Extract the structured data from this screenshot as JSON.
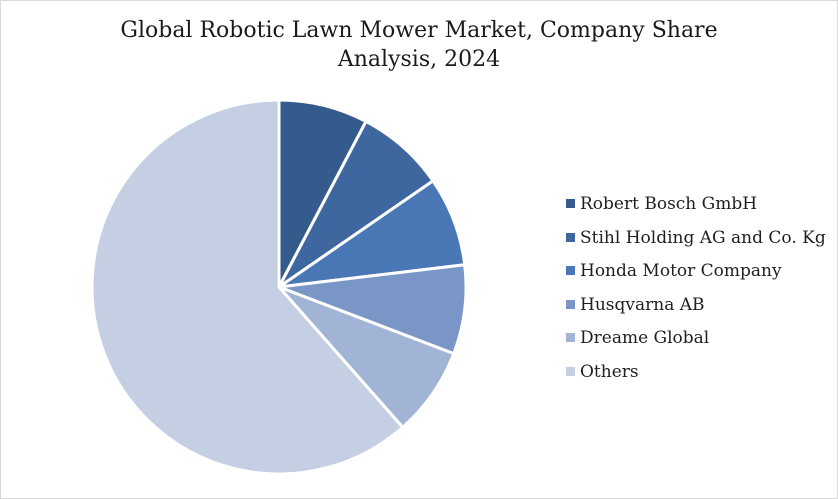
{
  "chart_data": {
    "type": "pie",
    "title_lines": [
      "Global Robotic Lawn Mower Market, Company Share",
      "Analysis, 2024"
    ],
    "legend_position": "right",
    "slices": [
      {
        "label": "Robert Bosch GmbH",
        "value": 7.7,
        "color": "#355a8c"
      },
      {
        "label": "Stihl Holding AG and Co. Kg",
        "value": 7.7,
        "color": "#3e67a0"
      },
      {
        "label": "Honda Motor Company",
        "value": 7.7,
        "color": "#4a78b6"
      },
      {
        "label": "Husqvarna AB",
        "value": 7.7,
        "color": "#7996c7"
      },
      {
        "label": "Dreame Global",
        "value": 7.7,
        "color": "#a1b4d6"
      },
      {
        "label": "Others",
        "value": 61.5,
        "color": "#c4cfe3"
      }
    ]
  }
}
